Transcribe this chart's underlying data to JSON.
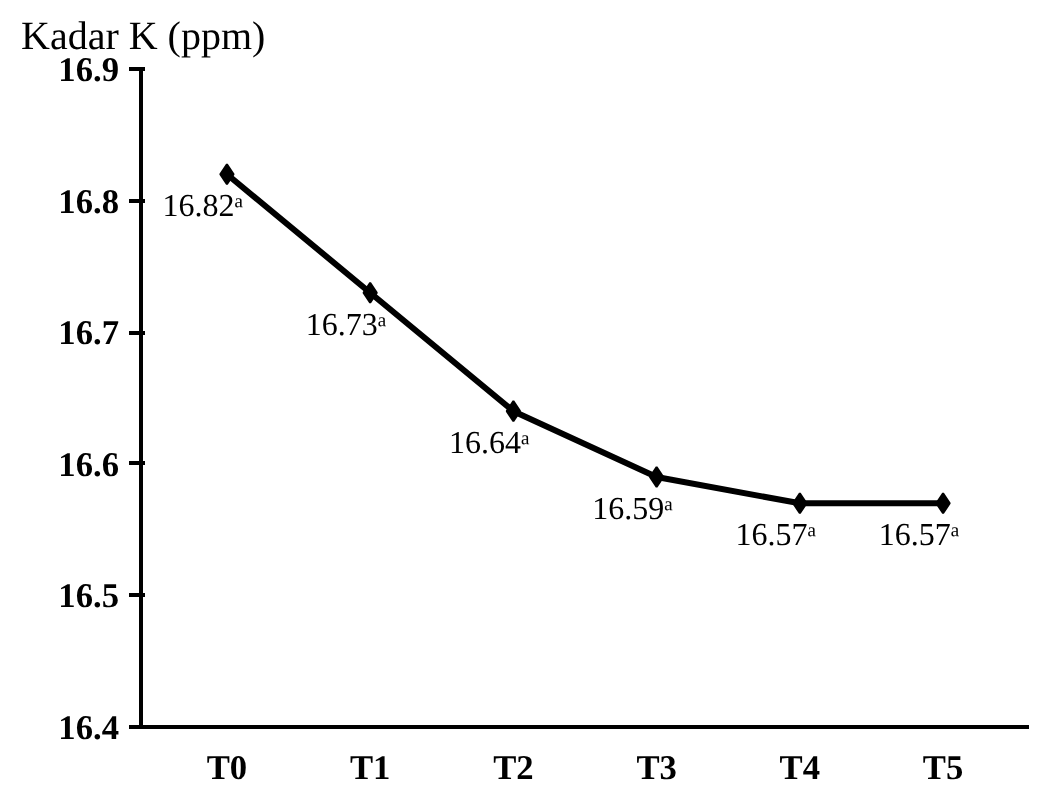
{
  "chart_data": {
    "type": "line",
    "ylabel": "Kadar K (ppm)",
    "categories": [
      "T0",
      "T1",
      "T2",
      "T3",
      "T4",
      "T5"
    ],
    "series": [
      {
        "color": "#000000",
        "values": [
          16.82,
          16.73,
          16.64,
          16.59,
          16.57,
          16.57
        ],
        "value_labels": [
          "16.82ᵃ",
          "16.73ᵃ",
          "16.64ᵃ",
          "16.59ᵃ",
          "16.57ᵃ",
          "16.57ᵃ"
        ]
      }
    ],
    "ylim": [
      16.4,
      16.9
    ],
    "yticks": [
      {
        "value": 16.4,
        "label": "16.4"
      },
      {
        "value": 16.5,
        "label": "16.5"
      },
      {
        "value": 16.6,
        "label": "16.6"
      },
      {
        "value": 16.7,
        "label": "16.7"
      },
      {
        "value": 16.8,
        "label": "16.8"
      },
      {
        "value": 16.9,
        "label": "16.9"
      }
    ],
    "grid": false,
    "marker": "diamond",
    "line_style": "solid"
  }
}
